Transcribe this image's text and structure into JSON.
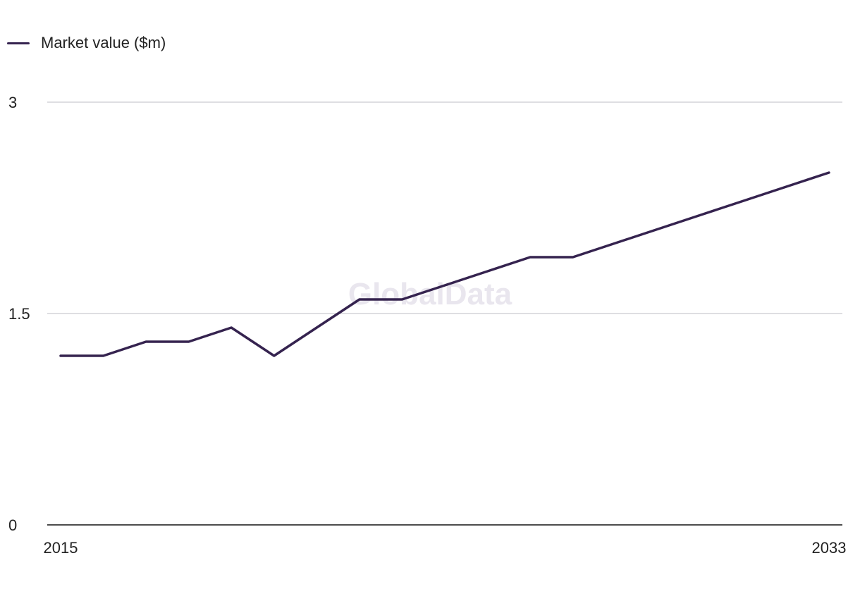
{
  "colors": {
    "series": "#35234f",
    "grid": "#d4d4d8",
    "axis": "#111111"
  },
  "watermark": "GlobalData",
  "chart_data": {
    "type": "line",
    "x": [
      2015,
      2016,
      2017,
      2018,
      2019,
      2020,
      2021,
      2022,
      2023,
      2024,
      2025,
      2026,
      2027,
      2028,
      2029,
      2030,
      2031,
      2032,
      2033
    ],
    "x_tick_labels": [
      "2015",
      "2033"
    ],
    "y_tick_labels": [
      "0",
      "1.5",
      "3"
    ],
    "ylim": [
      0,
      3
    ],
    "grid": true,
    "legend": "top-left",
    "series": [
      {
        "name": "Market value ($m)",
        "values": [
          1.2,
          1.2,
          1.3,
          1.3,
          1.4,
          1.2,
          1.4,
          1.6,
          1.6,
          1.7,
          1.8,
          1.9,
          1.9,
          2.0,
          2.1,
          2.2,
          2.3,
          2.4,
          2.5
        ]
      }
    ]
  }
}
